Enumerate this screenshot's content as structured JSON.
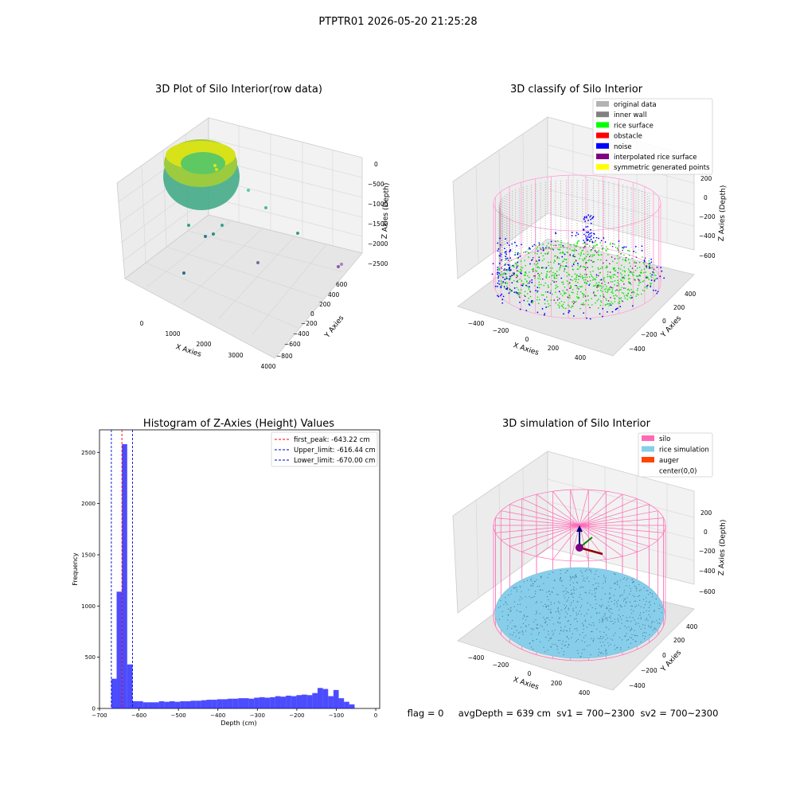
{
  "figure": {
    "suptitle": "PTPTR01 2026-05-20 21:25:28",
    "footer": "flag = 0     avgDepth = 639 cm  sv1 = 700~2300  sv2 = 700~2300"
  },
  "panels": {
    "raw": {
      "title": "3D Plot of Silo Interior(row data)",
      "xlabel": "X Axies",
      "ylabel": "Y Axies",
      "zlabel": "Z Axies (Depth)",
      "xticks": [
        "0",
        "1000",
        "2000",
        "3000",
        "4000"
      ],
      "yticks": [
        "600",
        "400",
        "200",
        "0",
        "−200",
        "−400",
        "−600",
        "−800"
      ],
      "zticks": [
        "0",
        "−500",
        "−1000",
        "−1500",
        "−2000",
        "−2500"
      ]
    },
    "classify": {
      "title": "3D classify of Silo Interior",
      "xlabel": "X Axies",
      "ylabel": "Y Axies",
      "zlabel": "Z Axies (Depth)",
      "xticks": [
        "−400",
        "−200",
        "0",
        "200",
        "400"
      ],
      "yticks": [
        "400",
        "200",
        "0",
        "−200",
        "−400"
      ],
      "zticks": [
        "200",
        "0",
        "−200",
        "−400",
        "−600"
      ],
      "legend": [
        {
          "label": "original data",
          "color": "#b3b3b3"
        },
        {
          "label": "inner wall",
          "color": "#808080"
        },
        {
          "label": "rice surface",
          "color": "#00ff00"
        },
        {
          "label": "obstacle",
          "color": "#ff0000"
        },
        {
          "label": "noise",
          "color": "#0000ff"
        },
        {
          "label": "interpolated rice surface",
          "color": "#800080"
        },
        {
          "label": "symmetric generated points",
          "color": "#ffff00"
        }
      ]
    },
    "simulation": {
      "title": "3D simulation of Silo Interior",
      "xlabel": "X Axies",
      "ylabel": "Y Axies",
      "zlabel": "Z Axies (Depth)",
      "xticks": [
        "−400",
        "−200",
        "0",
        "200",
        "400"
      ],
      "yticks": [
        "400",
        "200",
        "0",
        "−200",
        "−400"
      ],
      "zticks": [
        "200",
        "0",
        "−200",
        "−400",
        "−600"
      ],
      "legend": [
        {
          "label": "silo",
          "color": "#ff69b4"
        },
        {
          "label": "rice simulation",
          "color": "#87ceeb"
        },
        {
          "label": "auger",
          "color": "#ff4500"
        },
        {
          "label": "center(0,0)",
          "color": ""
        }
      ]
    }
  },
  "chart_data": [
    {
      "type": "scatter",
      "title": "3D Plot of Silo Interior(row data)",
      "xlabel": "X Axies",
      "ylabel": "Y Axies",
      "zlabel": "Z Axies (Depth)",
      "xlim": [
        -500,
        4000
      ],
      "ylim": [
        -800,
        600
      ],
      "zlim": [
        -2700,
        0
      ],
      "colormap": "viridis",
      "series": [
        {
          "x": [
            2600,
            3000,
            1700,
            2500,
            300,
            3600,
            600,
            3800,
            3850,
            1100,
            1500,
            400
          ],
          "y": [
            300,
            300,
            -100,
            -500,
            -200,
            -600,
            100,
            -800,
            -750,
            0,
            500,
            200
          ],
          "z": [
            -750,
            -1100,
            -1800,
            -2400,
            -1500,
            -1800,
            -1500,
            -2600,
            -2500,
            -1500,
            -1700,
            -2600
          ]
        }
      ]
    },
    {
      "type": "scatter",
      "title": "3D classify of Silo Interior",
      "xlabel": "X Axies",
      "ylabel": "Y Axies",
      "zlabel": "Z Axies (Depth)",
      "xlim": [
        -500,
        500
      ],
      "ylim": [
        -500,
        500
      ],
      "zlim": [
        -700,
        250
      ],
      "series": [
        {
          "name": "original data",
          "color": "#b3b3b3"
        },
        {
          "name": "inner wall",
          "color": "#808080"
        },
        {
          "name": "rice surface",
          "color": "#00ff00"
        },
        {
          "name": "obstacle",
          "color": "#ff0000"
        },
        {
          "name": "noise",
          "color": "#0000ff"
        },
        {
          "name": "interpolated rice surface",
          "color": "#800080"
        },
        {
          "name": "symmetric generated points",
          "color": "#ffff00"
        }
      ]
    },
    {
      "type": "bar",
      "title": "Histogram of Z-Axies (Height) Values",
      "xlabel": "Depth (cm)",
      "ylabel": "Frequency",
      "xlim": [
        -700,
        10
      ],
      "ylim": [
        0,
        2720
      ],
      "xticks": [
        -700,
        -600,
        -500,
        -400,
        -300,
        -200,
        -100,
        0
      ],
      "yticks": [
        0,
        500,
        1000,
        1500,
        2000,
        2500
      ],
      "bin_start": -670,
      "bin_width": 13.4,
      "values": [
        290,
        1140,
        2580,
        430,
        70,
        70,
        60,
        60,
        60,
        70,
        65,
        70,
        65,
        70,
        70,
        75,
        75,
        80,
        85,
        85,
        90,
        90,
        95,
        95,
        100,
        100,
        95,
        105,
        110,
        105,
        110,
        120,
        115,
        125,
        120,
        130,
        135,
        130,
        150,
        200,
        190,
        120,
        180,
        100,
        65,
        40
      ],
      "bar_color": "#0000ff",
      "lines": [
        {
          "label": "first_peak: -643.22 cm",
          "x": -643.22,
          "color": "#ff0000"
        },
        {
          "label": "Upper_limit: -616.44 cm",
          "x": -616.44,
          "color": "#0000cc"
        },
        {
          "label": "Lower_limit: -670.00 cm",
          "x": -670.0,
          "color": "#0000cc"
        }
      ]
    },
    {
      "type": "scatter",
      "title": "3D simulation of Silo Interior",
      "xlabel": "X Axies",
      "ylabel": "Y Axies",
      "zlabel": "Z Axies (Depth)",
      "xlim": [
        -500,
        500
      ],
      "ylim": [
        -500,
        500
      ],
      "zlim": [
        -700,
        250
      ],
      "series": [
        {
          "name": "silo",
          "color": "#ff69b4"
        },
        {
          "name": "rice simulation",
          "color": "#87ceeb"
        },
        {
          "name": "auger",
          "color": "#ff4500"
        }
      ]
    }
  ]
}
